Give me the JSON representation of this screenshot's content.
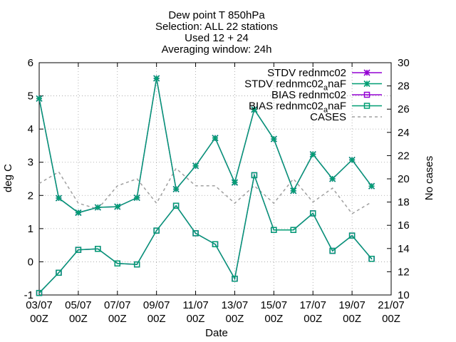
{
  "chart_data": {
    "type": "line",
    "title_lines": [
      "Dew point T 850hPa",
      "Selection: ALL      22 stations",
      "Used 12 + 24",
      "Averaging window: 24h"
    ],
    "xlabel": "Date",
    "ylabel": "deg C",
    "y2label": "No cases",
    "x_ticks": [
      {
        "day": 3,
        "label1": "03/07",
        "label2": "00Z"
      },
      {
        "day": 5,
        "label1": "05/07",
        "label2": "00Z"
      },
      {
        "day": 7,
        "label1": "07/07",
        "label2": "00Z"
      },
      {
        "day": 9,
        "label1": "09/07",
        "label2": "00Z"
      },
      {
        "day": 11,
        "label1": "11/07",
        "label2": "00Z"
      },
      {
        "day": 13,
        "label1": "13/07",
        "label2": "00Z"
      },
      {
        "day": 15,
        "label1": "15/07",
        "label2": "00Z"
      },
      {
        "day": 17,
        "label1": "17/07",
        "label2": "00Z"
      },
      {
        "day": 19,
        "label1": "19/07",
        "label2": "00Z"
      },
      {
        "day": 21,
        "label1": "21/07",
        "label2": "00Z"
      }
    ],
    "xlim": [
      3,
      21
    ],
    "ylim": [
      -1,
      6
    ],
    "y2lim": [
      10,
      30
    ],
    "y_ticks": [
      -1,
      0,
      1,
      2,
      3,
      4,
      5,
      6
    ],
    "y2_ticks": [
      10,
      12,
      14,
      16,
      18,
      20,
      22,
      24,
      26,
      28,
      30
    ],
    "grid": true,
    "legend_position": "top-right",
    "x": [
      3,
      4,
      5,
      6,
      7,
      8,
      9,
      10,
      11,
      12,
      13,
      14,
      15,
      16,
      17,
      18,
      19,
      20
    ],
    "series": [
      {
        "name": "STDV rednmc02",
        "axis": "y1",
        "color": "#9400d3",
        "marker": "star",
        "values": [
          4.92,
          1.92,
          1.48,
          1.64,
          1.66,
          1.93,
          5.53,
          2.19,
          2.89,
          3.73,
          2.39,
          4.59,
          3.7,
          2.14,
          3.24,
          2.5,
          3.07,
          2.28
        ]
      },
      {
        "name": "STDV rednmc02_anaF",
        "axis": "y1",
        "color": "#009e73",
        "marker": "star",
        "values": [
          4.92,
          1.92,
          1.48,
          1.64,
          1.66,
          1.93,
          5.53,
          2.19,
          2.89,
          3.73,
          2.39,
          4.59,
          3.7,
          2.14,
          3.24,
          2.5,
          3.07,
          2.28
        ]
      },
      {
        "name": "BIAS rednmc02",
        "axis": "y1",
        "color": "#9400d3",
        "marker": "square",
        "values": [
          -0.94,
          -0.33,
          0.36,
          0.39,
          -0.05,
          -0.08,
          0.94,
          1.69,
          0.86,
          0.53,
          -0.51,
          2.61,
          0.96,
          0.96,
          1.46,
          0.33,
          0.79,
          0.09
        ]
      },
      {
        "name": "BIAS rednmc02_anaF",
        "axis": "y1",
        "color": "#009e73",
        "marker": "square",
        "values": [
          -0.94,
          -0.33,
          0.36,
          0.39,
          -0.05,
          -0.08,
          0.94,
          1.69,
          0.86,
          0.53,
          -0.51,
          2.61,
          0.96,
          0.96,
          1.46,
          0.33,
          0.79,
          0.09
        ]
      },
      {
        "name": "CASES",
        "axis": "y2",
        "color": "#a0a0a0",
        "marker": "none",
        "dash": true,
        "values": [
          19.6,
          20.6,
          17.9,
          17.4,
          19.4,
          20.0,
          17.9,
          20.9,
          19.4,
          19.4,
          17.9,
          19.4,
          17.9,
          20.0,
          18.0,
          19.2,
          17.0,
          18.0
        ]
      }
    ],
    "legend": [
      {
        "label": "STDV rednmc02",
        "sub": "",
        "after": "",
        "color": "#9400d3",
        "marker": "star",
        "dash": false
      },
      {
        "label": "STDV rednmc02",
        "sub": "a",
        "after": "naF",
        "color": "#009e73",
        "marker": "star",
        "dash": false
      },
      {
        "label": "BIAS rednmc02",
        "sub": "",
        "after": "",
        "color": "#9400d3",
        "marker": "square",
        "dash": false
      },
      {
        "label": "BIAS rednmc02",
        "sub": "a",
        "after": "naF",
        "color": "#009e73",
        "marker": "square",
        "dash": false
      },
      {
        "label": "CASES",
        "sub": "",
        "after": "",
        "color": "#a0a0a0",
        "marker": "none",
        "dash": true
      }
    ]
  }
}
